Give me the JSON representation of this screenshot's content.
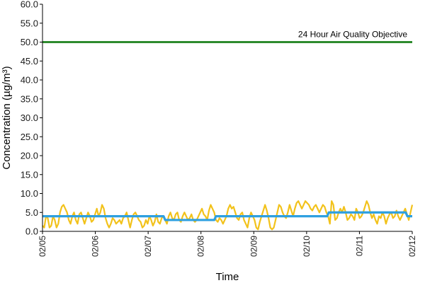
{
  "chart_data": {
    "type": "line",
    "xlabel": "Time",
    "ylabel": "Concentration (µg/m³)",
    "ylim": [
      0,
      60
    ],
    "yticks": [
      "0.0",
      "5.0",
      "10.0",
      "15.0",
      "20.0",
      "25.0",
      "30.0",
      "35.0",
      "40.0",
      "45.0",
      "50.0",
      "55.0",
      "60.0"
    ],
    "xticks": [
      "02/05",
      "02/06",
      "02/07",
      "02/08",
      "02/09",
      "02/10",
      "02/11",
      "02/12"
    ],
    "xlim": [
      "02/05",
      "02/12"
    ],
    "grid": false,
    "annotations": [
      {
        "text": "24 Hour Air Quality Objective"
      }
    ],
    "objective": {
      "value": 50,
      "color": "#2e8b2e"
    },
    "series": [
      {
        "color": "#f2c21b",
        "values": [
          1.5,
          1,
          4,
          3.5,
          1,
          1.5,
          4,
          3,
          1,
          2,
          5,
          6.5,
          7,
          6,
          5,
          3,
          2,
          4,
          5,
          3,
          2,
          4.5,
          5,
          3.5,
          2,
          3.5,
          5,
          4,
          2.5,
          3,
          4.5,
          6,
          4,
          5,
          7,
          6,
          3.5,
          2,
          1,
          2,
          3.5,
          3,
          2,
          2.5,
          3,
          2,
          3.5,
          4,
          5,
          3,
          1,
          3,
          4.5,
          5,
          4,
          3,
          2.5,
          1,
          1.5,
          3,
          2,
          4,
          3,
          1.5,
          2.5,
          4.5,
          2.5,
          2,
          3.5,
          4,
          3,
          2,
          4,
          5,
          3.5,
          3,
          4.5,
          5,
          3,
          2.5,
          4,
          5,
          4,
          3,
          3.5,
          4.5,
          3,
          2.5,
          3,
          4,
          5,
          6,
          4.5,
          4,
          3,
          5.5,
          7,
          6,
          5,
          3,
          2.5,
          3.5,
          3,
          2,
          3,
          4,
          6,
          7,
          6,
          6.5,
          5,
          3.5,
          3,
          4.5,
          5,
          3,
          2,
          1,
          3.5,
          5,
          4,
          3,
          1,
          0.5,
          2.5,
          4,
          5.5,
          7,
          5.5,
          3.5,
          1,
          0.5,
          1,
          3,
          5,
          7,
          6.5,
          5,
          4,
          3.5,
          5,
          7,
          5.5,
          4,
          6,
          7.5,
          8,
          7,
          6,
          7,
          8,
          7.5,
          7,
          6,
          5.5,
          6.5,
          7,
          6,
          5,
          6,
          7,
          6.5,
          5,
          4,
          2,
          8,
          7,
          3,
          3.5,
          5,
          6,
          5,
          6.5,
          5,
          3,
          3.5,
          4.5,
          4,
          3,
          6,
          5,
          3.5,
          4,
          5,
          6.5,
          8,
          7,
          5,
          3.5,
          4.5,
          3,
          2,
          4,
          3.5,
          5,
          4,
          2,
          3.5,
          4.5,
          5,
          3.5,
          4,
          5.5,
          4,
          3,
          4,
          5,
          6,
          4.5,
          3,
          5,
          7
        ]
      },
      {
        "color": "#2ea0e0",
        "values": [
          4,
          4,
          4,
          4,
          4,
          4,
          4,
          4,
          4,
          4,
          4,
          4,
          4,
          4,
          4,
          4,
          4,
          4,
          4,
          4,
          4,
          4,
          4,
          4,
          4,
          4,
          4,
          4,
          4,
          4,
          4,
          4,
          4,
          4,
          4,
          4,
          4,
          4,
          4,
          4,
          4,
          4,
          4,
          4,
          4,
          4,
          4,
          4,
          4,
          4,
          4,
          4,
          4,
          4,
          4,
          4,
          4,
          4,
          4,
          4,
          4,
          4,
          4,
          4,
          4,
          4,
          4,
          4,
          4,
          4,
          4,
          4,
          4,
          4,
          4,
          3,
          3,
          3,
          3,
          3,
          3,
          3,
          3,
          3,
          3,
          3,
          3,
          3,
          3,
          3,
          3,
          3,
          3,
          3,
          3,
          3,
          3,
          3,
          3,
          3,
          3,
          3,
          3,
          3,
          3,
          3,
          4,
          4,
          4,
          4,
          4,
          4,
          4,
          4,
          4,
          4,
          4,
          4,
          4,
          4,
          4,
          4,
          4,
          4,
          4,
          4,
          4,
          4,
          4,
          4,
          4,
          4,
          4,
          4,
          4,
          4,
          4,
          4,
          4,
          4,
          4,
          4,
          4,
          4,
          4,
          4,
          4,
          4,
          4,
          4,
          4,
          4,
          4,
          4,
          4,
          4,
          4,
          4,
          4,
          4,
          4,
          4,
          4,
          4,
          4,
          4,
          4,
          4,
          4,
          4,
          4,
          4,
          4,
          4,
          4,
          5,
          5,
          5,
          5,
          5,
          5,
          5,
          5,
          5,
          5,
          5,
          5,
          5,
          5,
          5,
          5,
          5,
          5,
          5,
          5,
          5,
          5,
          5,
          5,
          5,
          5,
          5,
          5,
          5,
          5,
          5,
          5,
          5,
          5,
          5,
          5,
          5,
          5,
          5,
          5,
          5,
          5,
          5,
          5,
          5,
          5,
          5,
          5,
          4,
          4,
          4,
          4
        ]
      }
    ]
  }
}
